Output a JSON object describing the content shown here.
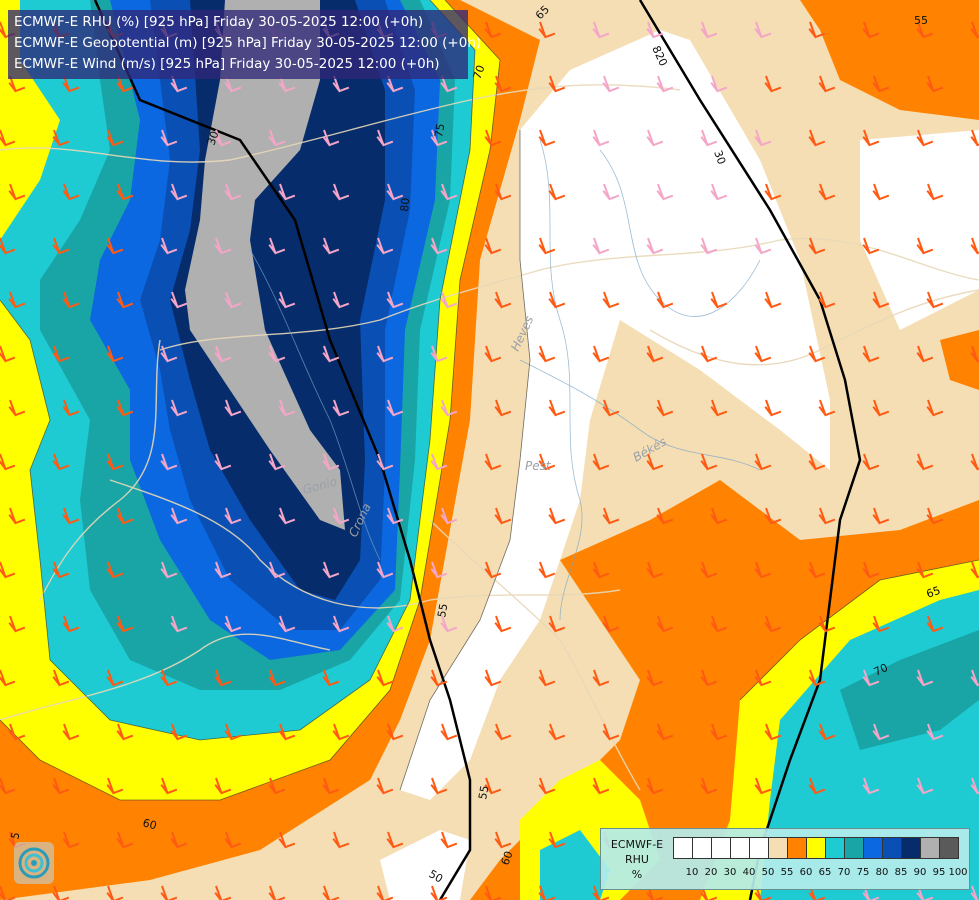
{
  "header": {
    "line1": "ECMWF-E RHU (%) [925 hPa] Friday 30-05-2025 12:00 (+0h)",
    "line2": "ECMWF-E Geopotential (m) [925 hPa] Friday 30-05-2025 12:00 (+0h)",
    "line3": "ECMWF-E Wind (m/s) [925 hPa] Friday 30-05-2025 12:00 (+0h)"
  },
  "legend": {
    "title_line1": "ECMWF-E",
    "title_line2": "RHU",
    "title_line3": "%",
    "swatch_colors": [
      "#ffffff",
      "#ffffff",
      "#ffffff",
      "#ffffff",
      "#ffffff",
      "#f5deb3",
      "#ff8200",
      "#ffff00",
      "#1ecbd2",
      "#19a5a6",
      "#0c68e0",
      "#0a4fb4",
      "#062c6b",
      "#b0b0b0",
      "#5a5a5a"
    ],
    "ticks": [
      "10",
      "20",
      "30",
      "40",
      "50",
      "55",
      "60",
      "65",
      "70",
      "75",
      "80",
      "85",
      "90",
      "95",
      "100"
    ]
  },
  "contour_labels": {
    "geo_820": "820",
    "geo_30_a": "30",
    "geo_30_b": "30",
    "rh_55_tr": "55",
    "rh_65_t": "65",
    "rh_70_t": "70",
    "rh_75_t": "75",
    "rh_80": "80",
    "rh_55_mid": "55",
    "rh_65_r": "65",
    "rh_70_r": "70",
    "rh_55_bot": "55",
    "rh_50_bot": "50",
    "rh_60_bot": "60",
    "rh_60_br": "60",
    "rh_5_left": "5"
  },
  "places": {
    "heves": "Heves",
    "pest": "Pest",
    "bekes": "Békés",
    "gonio": "Gonio",
    "crona": "Crona"
  },
  "colors": {
    "rh_50": "#ffffff",
    "rh_55": "#f5deb3",
    "rh_60": "#ff8200",
    "rh_65": "#ffff00",
    "rh_70": "#1ecbd2",
    "rh_75": "#19a5a6",
    "rh_80": "#0c68e0",
    "rh_85": "#0a4fb4",
    "rh_90": "#062c6b",
    "rh_95": "#b0b0b0",
    "wind_barb_warm": "#ff5a14",
    "wind_barb_cool": "#f4a6c8",
    "geopotential_line": "#000000"
  },
  "icons": {
    "logo": "swirl-logo-icon"
  }
}
